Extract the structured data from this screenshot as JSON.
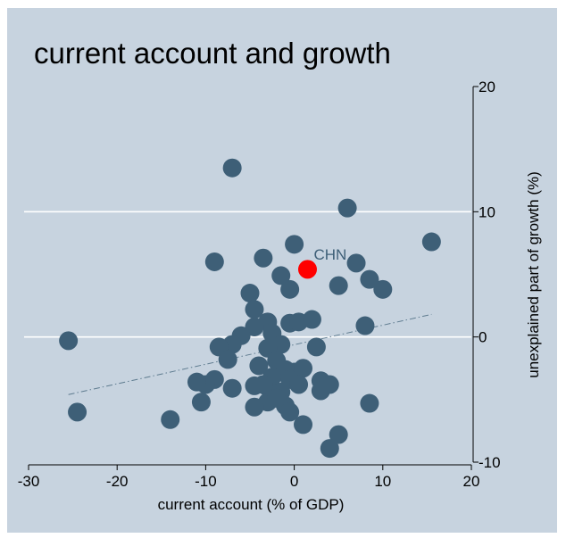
{
  "chart_data": {
    "type": "scatter",
    "title": "current account and growth",
    "xlabel": "current account (% of GDP)",
    "ylabel": "unexplained part of growth (%)",
    "xlim": [
      -30,
      20
    ],
    "ylim": [
      -10,
      20
    ],
    "x_ticks": [
      -30,
      -20,
      -10,
      0,
      10,
      20
    ],
    "y_ticks": [
      -10,
      0,
      10,
      20
    ],
    "x_tick_labels": [
      "-30",
      "-20",
      "-10",
      "0",
      "10",
      "20"
    ],
    "y_tick_labels": [
      "-10",
      "0",
      "10",
      "20"
    ],
    "y_axis_position": "right",
    "grid": "horizontal",
    "colors": {
      "background": "#c7d3df",
      "marker": "#3e5f77",
      "highlight": "#ff0000",
      "annotation": "#3e5f77",
      "fit_line": "#5e7b8f",
      "grid": "#ffffff"
    },
    "highlight": {
      "label": "CHN",
      "x": 1.5,
      "y": 5.4
    },
    "fit_line": {
      "style": "dash-dot",
      "x": [
        -25.5,
        15.5
      ],
      "y": [
        -4.6,
        1.8
      ]
    },
    "points": [
      {
        "x": -25.5,
        "y": -0.3
      },
      {
        "x": -24.5,
        "y": -6.0
      },
      {
        "x": -14.0,
        "y": -6.6
      },
      {
        "x": -7.0,
        "y": 13.5
      },
      {
        "x": 6.0,
        "y": 10.3
      },
      {
        "x": 15.5,
        "y": 7.6
      },
      {
        "x": -9.0,
        "y": 6.0
      },
      {
        "x": -3.5,
        "y": 6.3
      },
      {
        "x": 0.0,
        "y": 7.4
      },
      {
        "x": 7.0,
        "y": 5.9
      },
      {
        "x": 8.5,
        "y": 4.6
      },
      {
        "x": 10.0,
        "y": 3.8
      },
      {
        "x": 5.0,
        "y": 4.1
      },
      {
        "x": -1.5,
        "y": 4.9
      },
      {
        "x": -0.5,
        "y": 3.8
      },
      {
        "x": -5.0,
        "y": 3.5
      },
      {
        "x": -4.5,
        "y": 2.2
      },
      {
        "x": -3.0,
        "y": 1.2
      },
      {
        "x": -4.5,
        "y": 0.8
      },
      {
        "x": -6.0,
        "y": 0.1
      },
      {
        "x": -7.0,
        "y": -0.6
      },
      {
        "x": -8.5,
        "y": -0.8
      },
      {
        "x": -7.5,
        "y": -1.8
      },
      {
        "x": -2.5,
        "y": 0.3
      },
      {
        "x": -1.5,
        "y": -0.6
      },
      {
        "x": -3.0,
        "y": -0.9
      },
      {
        "x": -0.5,
        "y": 1.1
      },
      {
        "x": 0.5,
        "y": 1.2
      },
      {
        "x": 2.0,
        "y": 1.4
      },
      {
        "x": 8.0,
        "y": 0.9
      },
      {
        "x": 2.5,
        "y": -0.8
      },
      {
        "x": -2.0,
        "y": -1.9
      },
      {
        "x": -4.0,
        "y": -2.3
      },
      {
        "x": -1.0,
        "y": -2.6
      },
      {
        "x": 0.0,
        "y": -2.8
      },
      {
        "x": 1.0,
        "y": -2.5
      },
      {
        "x": -2.5,
        "y": -3.2
      },
      {
        "x": -0.5,
        "y": -3.4
      },
      {
        "x": 0.5,
        "y": -3.8
      },
      {
        "x": -3.0,
        "y": -4.0
      },
      {
        "x": -4.5,
        "y": -3.9
      },
      {
        "x": -7.0,
        "y": -4.1
      },
      {
        "x": -9.0,
        "y": -3.4
      },
      {
        "x": -10.0,
        "y": -3.8
      },
      {
        "x": -11.0,
        "y": -3.6
      },
      {
        "x": -1.5,
        "y": -4.4
      },
      {
        "x": -3.0,
        "y": -5.2
      },
      {
        "x": -4.5,
        "y": -5.6
      },
      {
        "x": -1.0,
        "y": -5.5
      },
      {
        "x": -0.5,
        "y": -6.0
      },
      {
        "x": 1.0,
        "y": -7.0
      },
      {
        "x": 3.0,
        "y": -3.5
      },
      {
        "x": 3.0,
        "y": -4.3
      },
      {
        "x": 4.0,
        "y": -3.8
      },
      {
        "x": 5.0,
        "y": -7.8
      },
      {
        "x": 4.0,
        "y": -8.9
      },
      {
        "x": 8.5,
        "y": -5.3
      },
      {
        "x": -10.5,
        "y": -5.2
      },
      {
        "x": -3.5,
        "y": -3.8
      },
      {
        "x": -2.0,
        "y": -4.9
      }
    ]
  }
}
